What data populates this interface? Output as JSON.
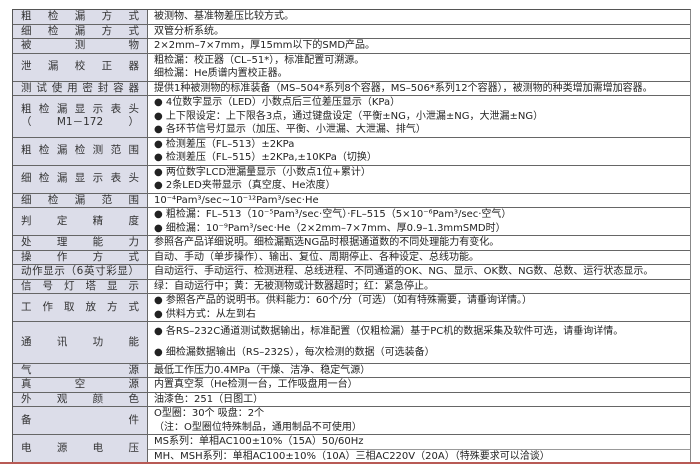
{
  "rows": [
    {
      "label": [
        "粗检漏方式"
      ],
      "values": [
        "被测物、基准物差压比较方式。"
      ]
    },
    {
      "label": [
        "细检漏方式"
      ],
      "values": [
        "双管分析系统。"
      ]
    },
    {
      "label": [
        "被测物"
      ],
      "values": [
        "2×2mm–7×7mm，厚15mm以下的SMD产品。"
      ]
    },
    {
      "label": [
        "泄漏校正器"
      ],
      "values": [
        "粗检漏：校正器（CL–51*），标准配置可溯源。",
        "细检漏：He质谱内置校正器。"
      ]
    },
    {
      "label": [
        "测试使用密封容器"
      ],
      "values": [
        "提供1种被测物的标准装备（MS–504*系列8个容器，MS–506*系列12个容器），被测物的种类增加需增加容器。"
      ]
    },
    {
      "label": [
        "粗检漏显示表头",
        "（M1－172）"
      ],
      "values": [
        "● 4位数字显示（LED）小数点后三位差压显示（KPa）",
        "● 上下限设定：上下限各3点，通过键盘设定（平衡±NG，小泄漏±NG，大泄漏±NG）",
        "● 各环节信号灯显示（加压、平衡、小泄漏、大泄漏、排气）"
      ]
    },
    {
      "label": [
        "粗检漏检测范围"
      ],
      "values": [
        "● 检测差压（FL–513）±2KPa",
        "● 检测差压（FL–515）±2KPa,±10KPa（切换）"
      ]
    },
    {
      "label": [
        "细检漏显示表头"
      ],
      "values": [
        "● 两位数字LCD泄漏量显示（小数点1位+累计）",
        "● 2条LED夹带显示（真空度、He浓度）"
      ]
    },
    {
      "label": [
        "细检漏范围"
      ],
      "values": [
        "10⁻⁴Pam³/sec~10⁻¹²Pam³/sec·He"
      ]
    },
    {
      "label": [
        "判定精度"
      ],
      "values": [
        "● 粗检漏：FL–513（10⁻⁵Pam³/sec·空气）·FL–515（5×10⁻⁶Pam³/sec·空气）",
        "● 细检漏：10⁻⁹Pam³/sec·He（2×2mm–7×7mm、厚0.9–1.3mmSMD时）"
      ]
    },
    {
      "label": [
        "处理能力"
      ],
      "values": [
        "参照各产品详细说明。细检漏甄选NG品时根据通道数的不同处理能力有变化。"
      ]
    },
    {
      "label": [
        "操作方式"
      ],
      "values": [
        "自动、手动（单步操作）、输出、复位、周期停止、各种设定、总线功能。"
      ]
    },
    {
      "label": [
        "动作显示（6英寸彩显）"
      ],
      "values": [
        "自动运行、手动运行、检测进程、总线进程、不同通道的OK、NG、显示、OK数、NG数、总数、运行状态显示。"
      ]
    },
    {
      "label": [
        "信号灯塔显示"
      ],
      "values": [
        "绿：自动运行中；黄：无被测物或计数器超时；红：紧急停止。"
      ]
    },
    {
      "label": [
        "工作取放方式"
      ],
      "values": [
        "● 参照各产品的说明书。供料能力：60个/分（可选）（如有特殊需要，请垂询详情。）",
        "● 供料方式：从左到右"
      ]
    },
    {
      "label": [
        "通讯功能"
      ],
      "values": [
        "● 各RS–232C通道测试数据输出，标准配置（仅粗检漏）基于PC机的数据采集及软件可选，请垂询详情。",
        "● 细检漏数据输出（RS–232S），每次检测的数据（可选装备）"
      ]
    },
    {
      "label": [
        "气源"
      ],
      "values": [
        "最低工作压力0.4MPa（干燥、洁净、稳定气源）"
      ]
    },
    {
      "label": [
        "真空源"
      ],
      "values": [
        "内置真空泵（He检测一台，工作吸盘用一台）"
      ]
    },
    {
      "label": [
        "外观颜色"
      ],
      "values": [
        "油漆色：251（日图工）"
      ]
    },
    {
      "label": [
        "备件"
      ],
      "values": [
        "O型圈：30个 吸盘：2个",
        "（注：O型圈位特殊制品，通用制品不可使用）"
      ]
    },
    {
      "label": [
        "电源电压"
      ],
      "values": [
        "MS系列：单相AC100±10%（15A）50/60Hz",
        "MH、MSH系列：单相AC100±10%（10A）三相AC220V（20A）（特殊要求可以洽谈）"
      ],
      "separated": true
    }
  ]
}
